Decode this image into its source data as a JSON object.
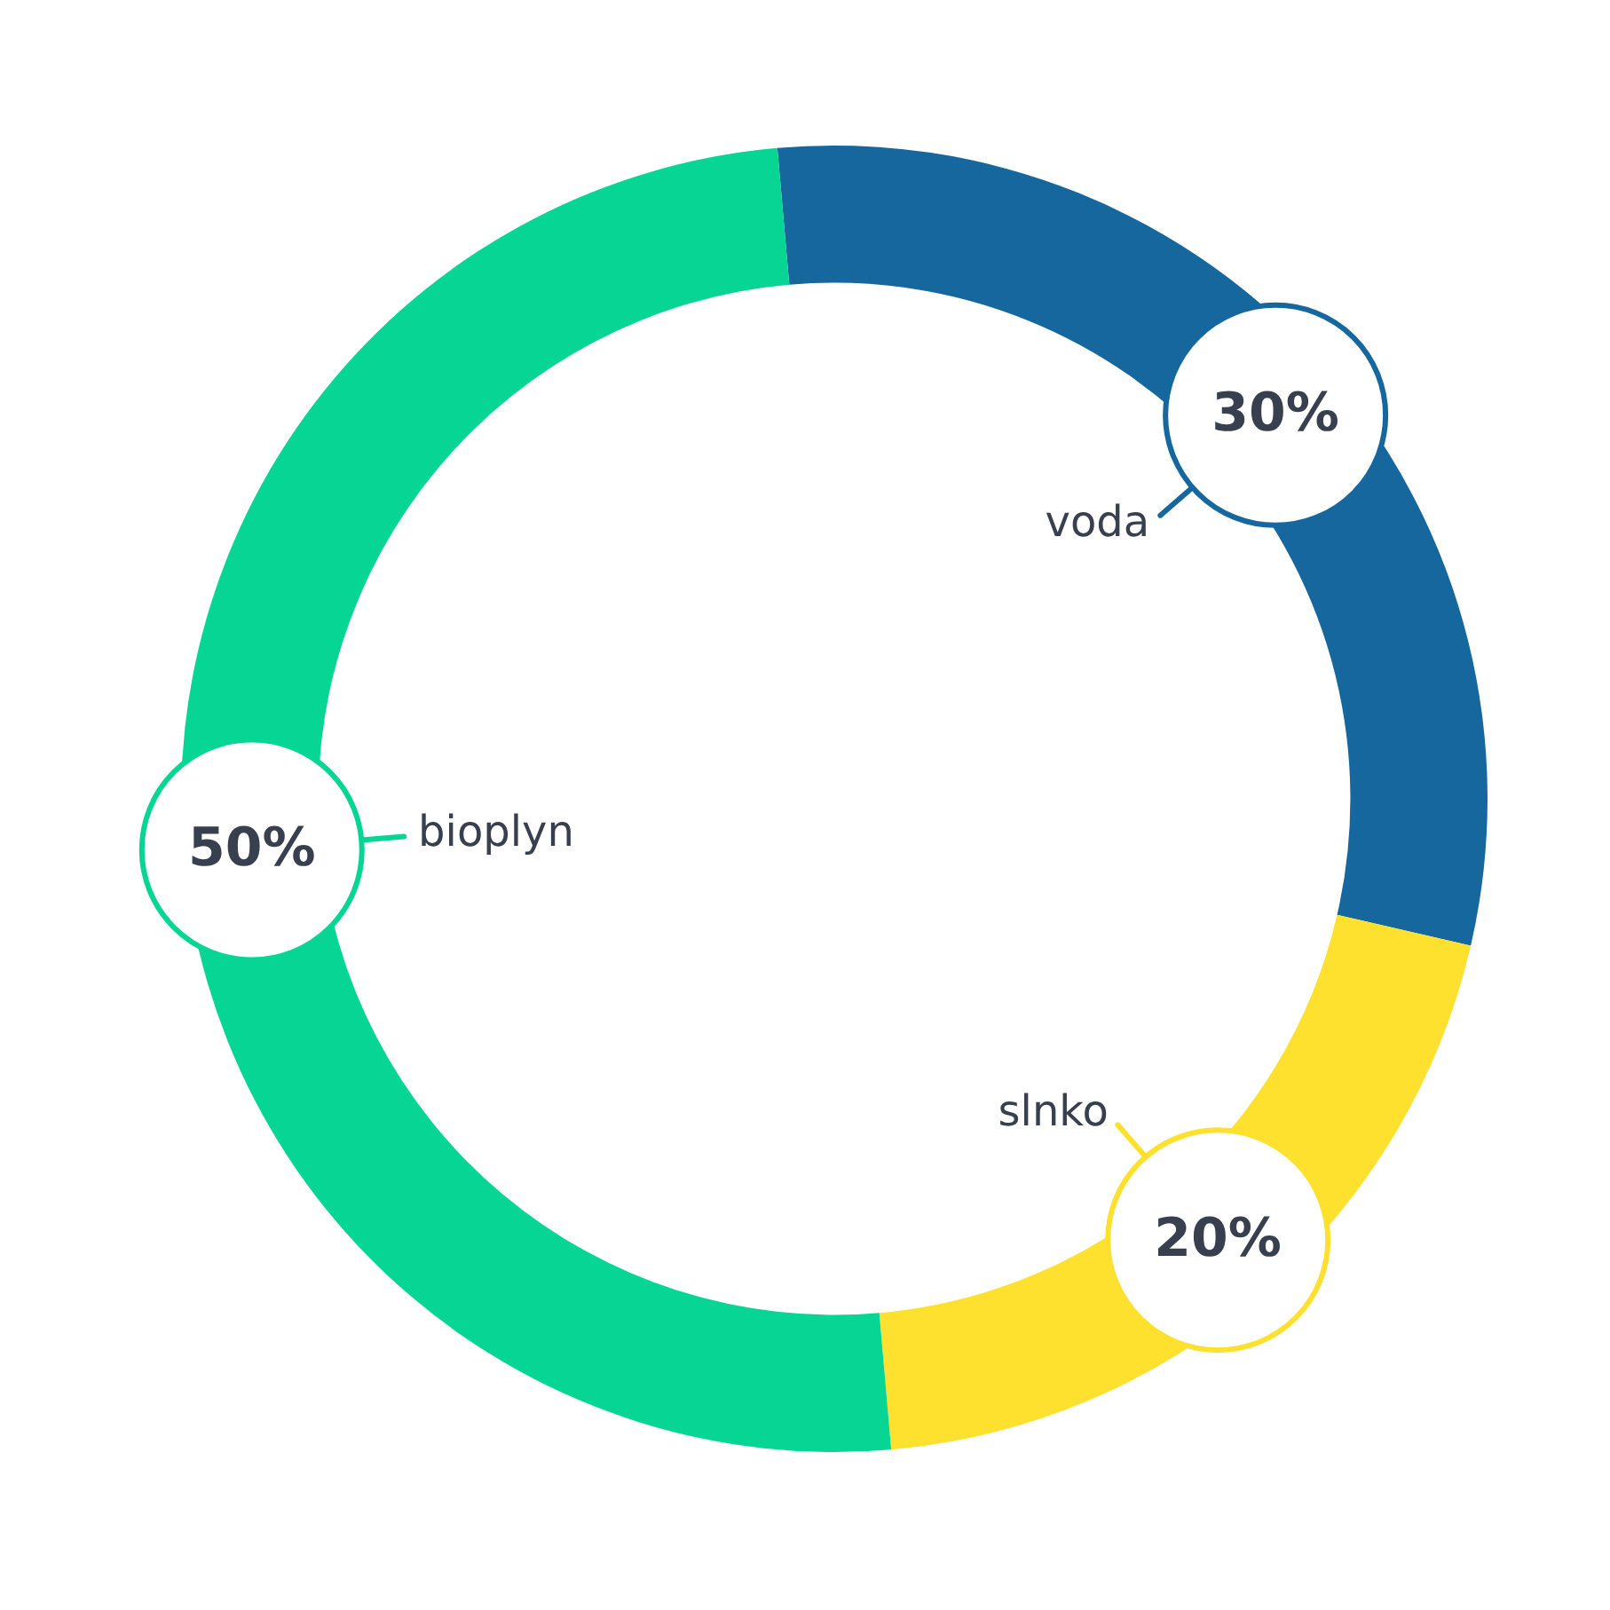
{
  "chart_data": {
    "type": "donut",
    "categories": [
      "voda",
      "slnko",
      "bioplyn"
    ],
    "values": [
      30,
      20,
      50
    ],
    "colors": [
      "#15679e",
      "#fee12f",
      "#07d593"
    ],
    "value_labels": [
      "30%",
      "20%",
      "50%"
    ],
    "legend": false
  }
}
